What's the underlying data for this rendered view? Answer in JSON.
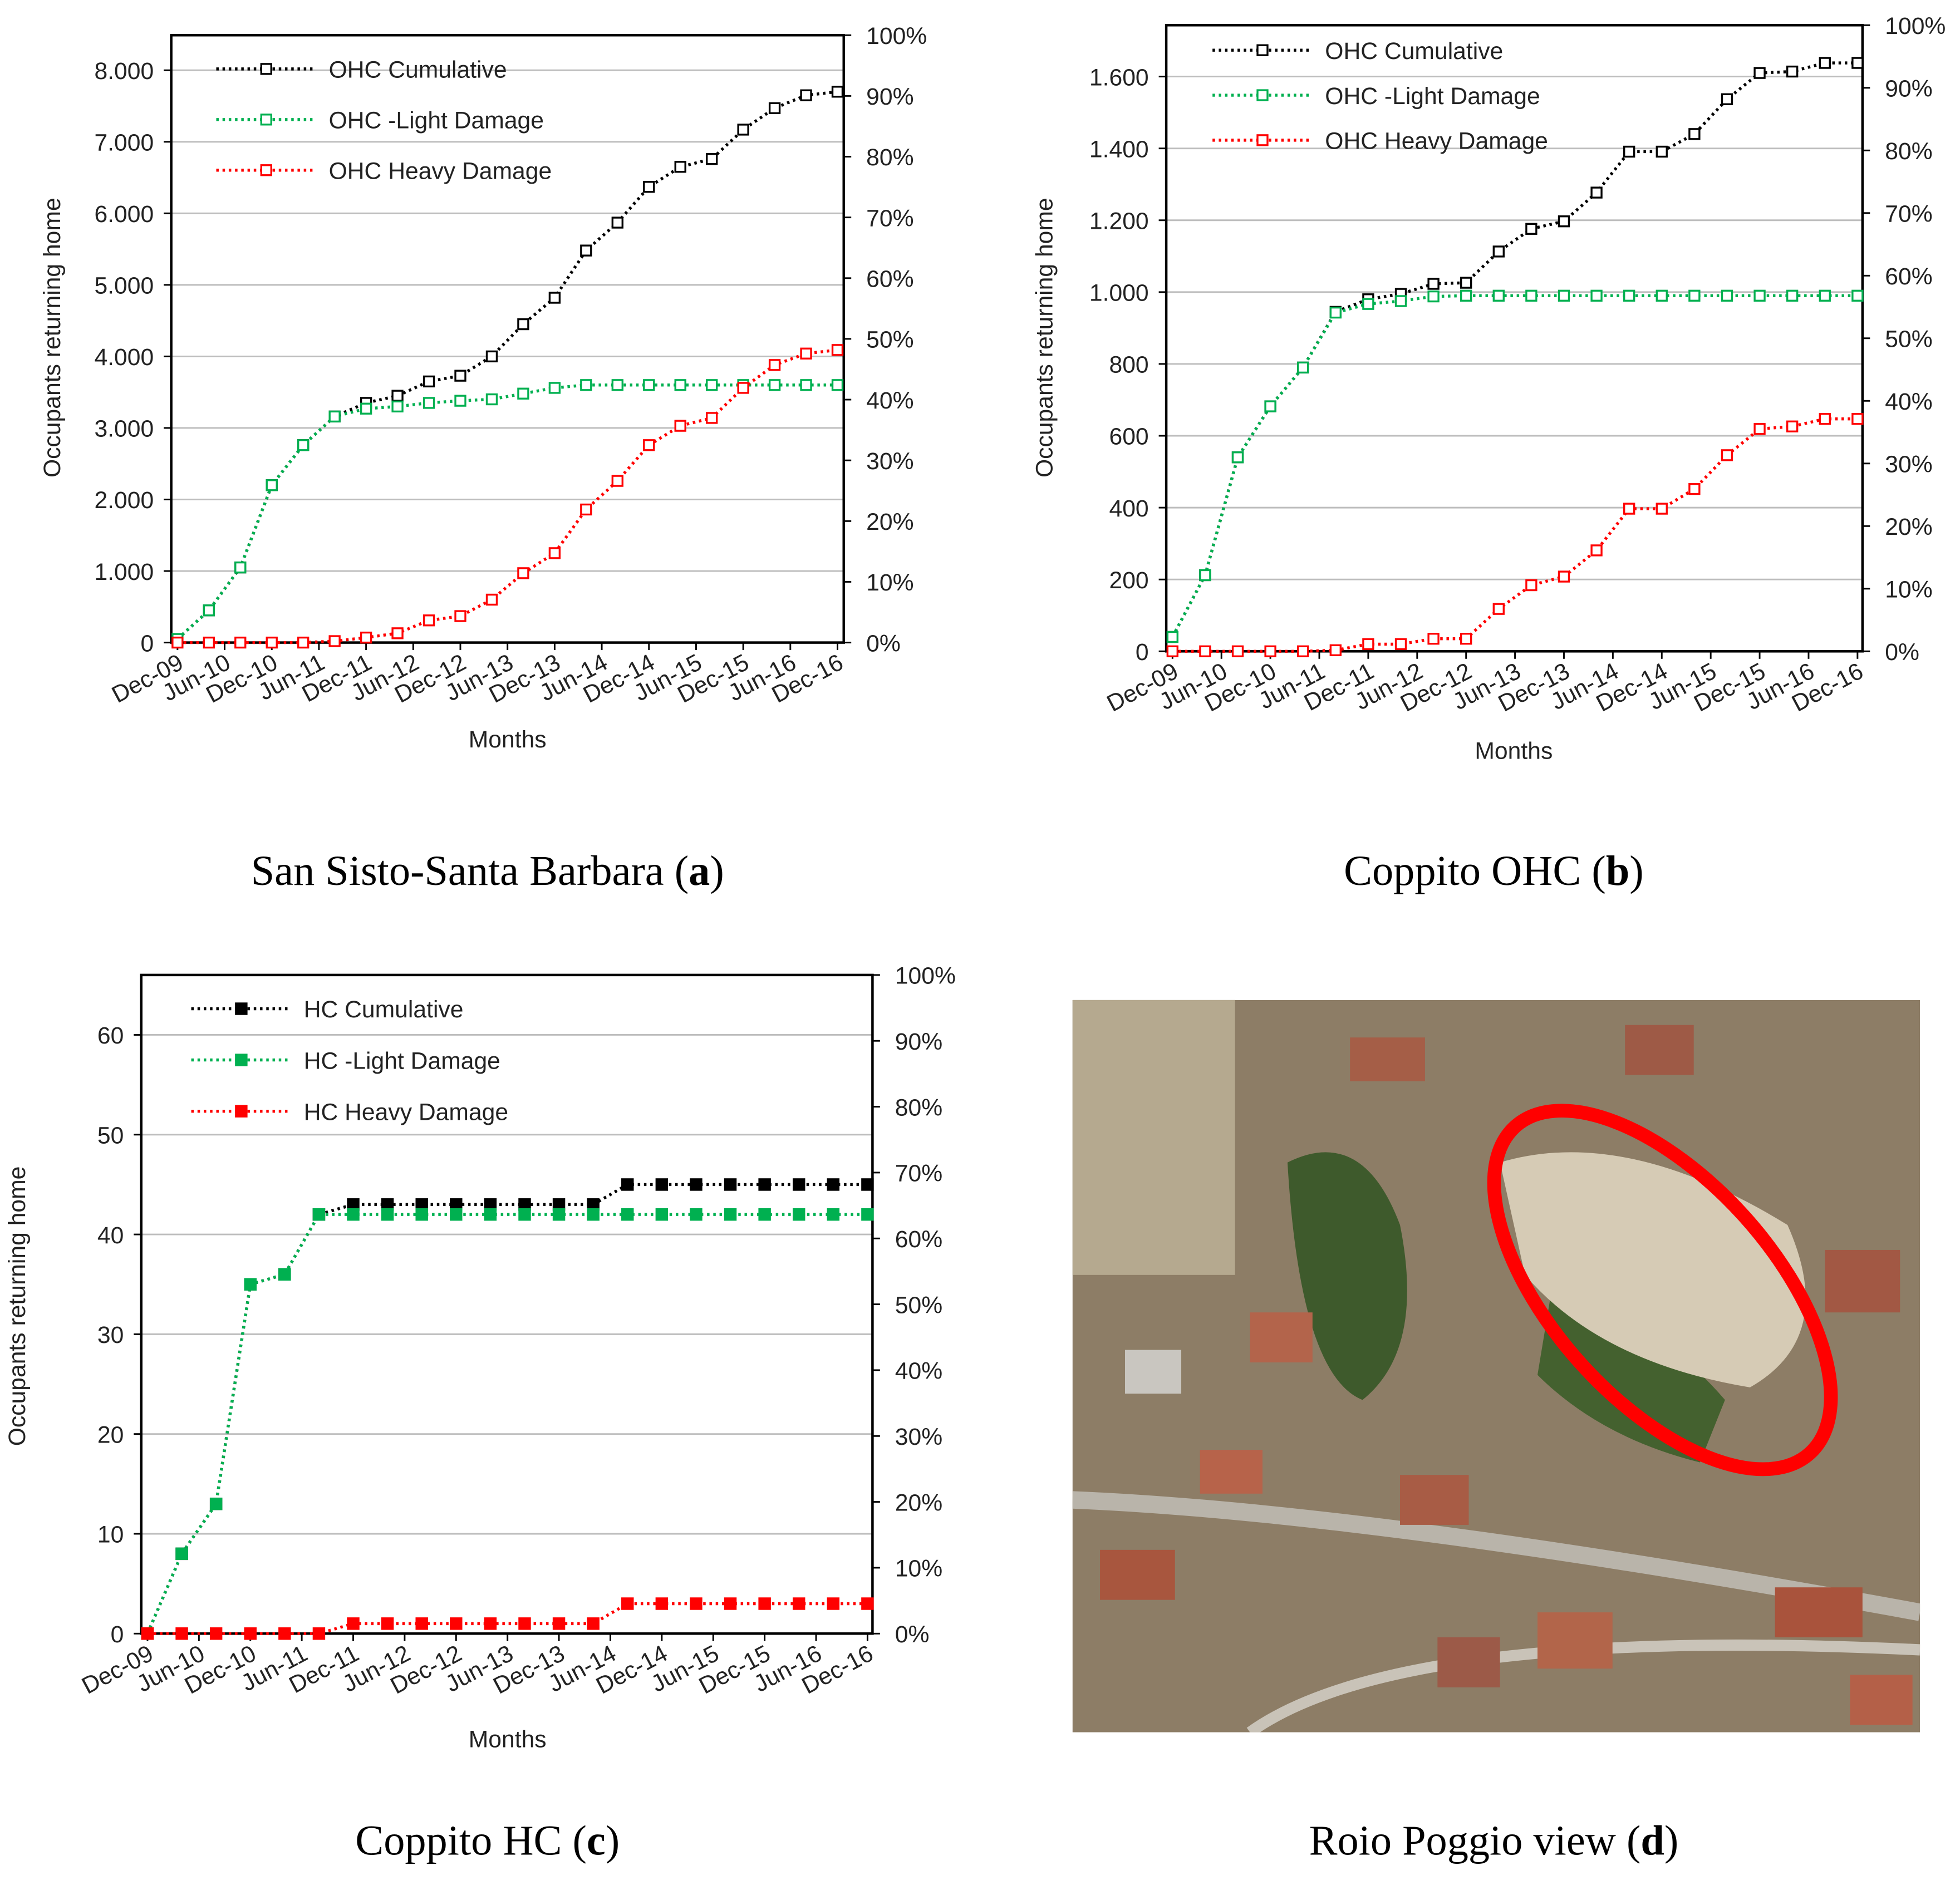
{
  "chart_data": [
    {
      "type": "line",
      "marker": "hollow-square",
      "ylabel": "Occupants returning home",
      "xlabel": "Months",
      "x": [
        "2009-12",
        "2010-04",
        "2010-08",
        "2010-12",
        "2011-04",
        "2011-08",
        "2011-12",
        "2012-04",
        "2012-08",
        "2012-12",
        "2013-04",
        "2013-08",
        "2013-12",
        "2014-04",
        "2014-08",
        "2014-12",
        "2015-04",
        "2015-08",
        "2015-12",
        "2016-04",
        "2016-08",
        "2016-12"
      ],
      "xlim": [
        "2009-12",
        "2016-12"
      ],
      "xticks": [
        {
          "value": "2009-12",
          "label": "Dec-09"
        },
        {
          "value": "2010-06",
          "label": "Jun-10"
        },
        {
          "value": "2010-12",
          "label": "Dec-10"
        },
        {
          "value": "2011-06",
          "label": "Jun-11"
        },
        {
          "value": "2011-12",
          "label": "Dec-11"
        },
        {
          "value": "2012-06",
          "label": "Jun-12"
        },
        {
          "value": "2012-12",
          "label": "Dec-12"
        },
        {
          "value": "2013-06",
          "label": "Jun-13"
        },
        {
          "value": "2013-12",
          "label": "Dec-13"
        },
        {
          "value": "2014-06",
          "label": "Jun-14"
        },
        {
          "value": "2014-12",
          "label": "Dec-14"
        },
        {
          "value": "2015-06",
          "label": "Jun-15"
        },
        {
          "value": "2015-12",
          "label": "Dec-15"
        },
        {
          "value": "2016-06",
          "label": "Jun-16"
        },
        {
          "value": "2016-12",
          "label": "Dec-16"
        }
      ],
      "ylim": [
        0,
        8490
      ],
      "yticks": [
        0,
        {
          "value": 1000,
          "label": "1.000"
        },
        {
          "value": 2000,
          "label": "2.000"
        },
        {
          "value": 3000,
          "label": "3.000"
        },
        {
          "value": 4000,
          "label": "4.000"
        },
        {
          "value": 5000,
          "label": "5.000"
        },
        {
          "value": 6000,
          "label": "6.000"
        },
        {
          "value": 7000,
          "label": "7.000"
        },
        {
          "value": 8000,
          "label": "8.000"
        }
      ],
      "y2lim": [
        0,
        100
      ],
      "y2ticks": [
        {
          "value": 0,
          "label": "0%"
        },
        {
          "value": 10,
          "label": "10%"
        },
        {
          "value": 20,
          "label": "20%"
        },
        {
          "value": 30,
          "label": "30%"
        },
        {
          "value": 40,
          "label": "40%"
        },
        {
          "value": 50,
          "label": "50%"
        },
        {
          "value": 60,
          "label": "60%"
        },
        {
          "value": 70,
          "label": "70%"
        },
        {
          "value": 80,
          "label": "80%"
        },
        {
          "value": 90,
          "label": "90%"
        },
        {
          "value": 100,
          "label": "100%"
        }
      ],
      "grid": true,
      "legend": "upper left",
      "series": [
        {
          "name": "OHC Cumulative",
          "color": "#000000",
          "values": [
            50,
            450,
            1050,
            2200,
            2760,
            3160,
            3350,
            3450,
            3650,
            3730,
            4000,
            4450,
            4820,
            5480,
            5870,
            6370,
            6650,
            6760,
            7170,
            7470,
            7650,
            7700
          ]
        },
        {
          "name": "OHC -Light Damage",
          "color": "#00b050",
          "values": [
            50,
            450,
            1050,
            2200,
            2760,
            3160,
            3270,
            3300,
            3350,
            3380,
            3400,
            3480,
            3560,
            3600,
            3600,
            3600,
            3600,
            3600,
            3600,
            3600,
            3600,
            3600
          ]
        },
        {
          "name": "OHC Heavy Damage",
          "color": "#ff0000",
          "values": [
            0,
            0,
            0,
            0,
            0,
            20,
            70,
            130,
            310,
            370,
            600,
            970,
            1250,
            1860,
            2260,
            2760,
            3030,
            3140,
            3560,
            3880,
            4040,
            4090
          ]
        }
      ]
    },
    {
      "type": "line",
      "marker": "hollow-square",
      "ylabel": "Occupants returning home",
      "xlabel": "Months",
      "x": [
        "2009-12",
        "2010-04",
        "2010-08",
        "2010-12",
        "2011-04",
        "2011-08",
        "2011-12",
        "2012-04",
        "2012-08",
        "2012-12",
        "2013-04",
        "2013-08",
        "2013-12",
        "2014-04",
        "2014-08",
        "2014-12",
        "2015-04",
        "2015-08",
        "2015-12",
        "2016-04",
        "2016-08",
        "2016-12"
      ],
      "xlim": [
        "2009-12",
        "2016-12"
      ],
      "xticks": [
        {
          "value": "2009-12",
          "label": "Dec-09"
        },
        {
          "value": "2010-06",
          "label": "Jun-10"
        },
        {
          "value": "2010-12",
          "label": "Dec-10"
        },
        {
          "value": "2011-06",
          "label": "Jun-11"
        },
        {
          "value": "2011-12",
          "label": "Dec-11"
        },
        {
          "value": "2012-06",
          "label": "Jun-12"
        },
        {
          "value": "2012-12",
          "label": "Dec-12"
        },
        {
          "value": "2013-06",
          "label": "Jun-13"
        },
        {
          "value": "2013-12",
          "label": "Dec-13"
        },
        {
          "value": "2014-06",
          "label": "Jun-14"
        },
        {
          "value": "2014-12",
          "label": "Dec-14"
        },
        {
          "value": "2015-06",
          "label": "Jun-15"
        },
        {
          "value": "2015-12",
          "label": "Dec-15"
        },
        {
          "value": "2016-06",
          "label": "Jun-16"
        },
        {
          "value": "2016-12",
          "label": "Dec-16"
        }
      ],
      "ylim": [
        0,
        1743
      ],
      "yticks": [
        0,
        200,
        400,
        600,
        800,
        {
          "value": 1000,
          "label": "1.000"
        },
        {
          "value": 1200,
          "label": "1.200"
        },
        {
          "value": 1400,
          "label": "1.400"
        },
        {
          "value": 1600,
          "label": "1.600"
        }
      ],
      "y2lim": [
        0,
        100
      ],
      "y2ticks": [
        {
          "value": 0,
          "label": "0%"
        },
        {
          "value": 10,
          "label": "10%"
        },
        {
          "value": 20,
          "label": "20%"
        },
        {
          "value": 30,
          "label": "30%"
        },
        {
          "value": 40,
          "label": "40%"
        },
        {
          "value": 50,
          "label": "50%"
        },
        {
          "value": 60,
          "label": "60%"
        },
        {
          "value": 70,
          "label": "70%"
        },
        {
          "value": 80,
          "label": "80%"
        },
        {
          "value": 90,
          "label": "90%"
        },
        {
          "value": 100,
          "label": "100%"
        }
      ],
      "grid": true,
      "legend": "upper left",
      "series": [
        {
          "name": "OHC Cumulative",
          "color": "#000000",
          "values": [
            40,
            212,
            540,
            682,
            790,
            945,
            980,
            995,
            1023,
            1026,
            1113,
            1176,
            1197,
            1277,
            1391,
            1391,
            1440,
            1537,
            1610,
            1614,
            1638,
            1638
          ]
        },
        {
          "name": "OHC -Light Damage",
          "color": "#00b050",
          "values": [
            40,
            212,
            540,
            682,
            790,
            943,
            967,
            975,
            988,
            990,
            990,
            990,
            990,
            990,
            990,
            990,
            990,
            990,
            990,
            990,
            990,
            990
          ]
        },
        {
          "name": "OHC Heavy Damage",
          "color": "#ff0000",
          "values": [
            0,
            0,
            0,
            0,
            0,
            3,
            20,
            20,
            35,
            35,
            118,
            184,
            208,
            281,
            397,
            397,
            452,
            546,
            619,
            626,
            647,
            647
          ]
        }
      ]
    },
    {
      "type": "line",
      "marker": "filled-square",
      "ylabel": "Occupants returning home",
      "xlabel": "Months",
      "x": [
        "2009-12",
        "2010-04",
        "2010-08",
        "2010-12",
        "2011-04",
        "2011-08",
        "2011-12",
        "2012-04",
        "2012-08",
        "2012-12",
        "2013-04",
        "2013-08",
        "2013-12",
        "2014-04",
        "2014-08",
        "2014-12",
        "2015-04",
        "2015-08",
        "2015-12",
        "2016-04",
        "2016-08",
        "2016-12"
      ],
      "xlim": [
        "2009-12",
        "2016-12"
      ],
      "xticks": [
        {
          "value": "2009-12",
          "label": "Dec-09"
        },
        {
          "value": "2010-06",
          "label": "Jun-10"
        },
        {
          "value": "2010-12",
          "label": "Dec-10"
        },
        {
          "value": "2011-06",
          "label": "Jun-11"
        },
        {
          "value": "2011-12",
          "label": "Dec-11"
        },
        {
          "value": "2012-06",
          "label": "Jun-12"
        },
        {
          "value": "2012-12",
          "label": "Dec-12"
        },
        {
          "value": "2013-06",
          "label": "Jun-13"
        },
        {
          "value": "2013-12",
          "label": "Dec-13"
        },
        {
          "value": "2014-06",
          "label": "Jun-14"
        },
        {
          "value": "2014-12",
          "label": "Dec-14"
        },
        {
          "value": "2015-06",
          "label": "Jun-15"
        },
        {
          "value": "2015-12",
          "label": "Dec-15"
        },
        {
          "value": "2016-06",
          "label": "Jun-16"
        },
        {
          "value": "2016-12",
          "label": "Dec-16"
        }
      ],
      "ylim": [
        0,
        66
      ],
      "yticks": [
        0,
        10,
        20,
        30,
        40,
        50,
        60
      ],
      "y2lim": [
        0,
        100
      ],
      "y2ticks": [
        {
          "value": 0,
          "label": "0%"
        },
        {
          "value": 10,
          "label": "10%"
        },
        {
          "value": 20,
          "label": "20%"
        },
        {
          "value": 30,
          "label": "30%"
        },
        {
          "value": 40,
          "label": "40%"
        },
        {
          "value": 50,
          "label": "50%"
        },
        {
          "value": 60,
          "label": "60%"
        },
        {
          "value": 70,
          "label": "70%"
        },
        {
          "value": 80,
          "label": "80%"
        },
        {
          "value": 90,
          "label": "90%"
        },
        {
          "value": 100,
          "label": "100%"
        }
      ],
      "grid": true,
      "legend": "upper left",
      "series": [
        {
          "name": "HC Cumulative",
          "color": "#000000",
          "values": [
            0,
            8,
            13,
            35,
            36,
            42,
            43,
            43,
            43,
            43,
            43,
            43,
            43,
            43,
            45,
            45,
            45,
            45,
            45,
            45,
            45,
            45
          ]
        },
        {
          "name": "HC -Light Damage",
          "color": "#00b050",
          "values": [
            0,
            8,
            13,
            35,
            36,
            42,
            42,
            42,
            42,
            42,
            42,
            42,
            42,
            42,
            42,
            42,
            42,
            42,
            42,
            42,
            42,
            42
          ]
        },
        {
          "name": "HC Heavy Damage",
          "color": "#ff0000",
          "values": [
            0,
            0,
            0,
            0,
            0,
            0,
            1,
            1,
            1,
            1,
            1,
            1,
            1,
            1,
            3,
            3,
            3,
            3,
            3,
            3,
            3,
            3
          ]
        }
      ]
    }
  ],
  "captions": [
    [
      "San Sisto-Santa Barbara (",
      "a",
      ")"
    ],
    [
      "Coppito OHC (",
      "b",
      ")"
    ],
    [
      "Coppito HC (",
      "c",
      ")"
    ],
    [
      "Roio Poggio view (",
      "d",
      ")"
    ]
  ]
}
